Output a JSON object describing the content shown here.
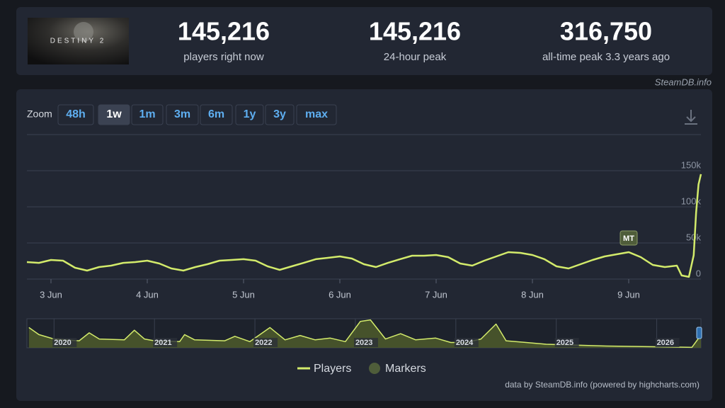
{
  "header": {
    "logo": "DESTINY 2",
    "stats": [
      {
        "value": "145,216",
        "label": "players right now"
      },
      {
        "value": "145,216",
        "label": "24-hour peak"
      },
      {
        "value": "316,750",
        "label": "all-time peak 3.3 years ago"
      }
    ],
    "source": "SteamDB.info"
  },
  "zoom": {
    "label": "Zoom",
    "buttons": [
      "48h",
      "1w",
      "1m",
      "3m",
      "6m",
      "1y",
      "3y",
      "max"
    ],
    "active": 1
  },
  "chart_data": {
    "type": "line",
    "x": [
      2.75,
      2.875,
      3.0,
      3.125,
      3.25,
      3.375,
      3.5,
      3.625,
      3.75,
      3.875,
      4.0,
      4.125,
      4.25,
      4.375,
      4.5,
      4.625,
      4.75,
      4.875,
      5.0,
      5.125,
      5.25,
      5.375,
      5.5,
      5.625,
      5.75,
      5.875,
      6.0,
      6.125,
      6.25,
      6.375,
      6.5,
      6.625,
      6.75,
      6.875,
      7.0,
      7.125,
      7.25,
      7.375,
      7.5,
      7.625,
      7.75,
      7.875,
      8.0,
      8.125,
      8.25,
      8.375,
      8.5,
      8.625,
      8.75,
      8.875,
      9.0,
      9.125,
      9.25,
      9.375,
      9.5,
      9.55,
      9.625,
      9.675,
      9.7,
      9.725,
      9.75
    ],
    "xlim": [
      2.75,
      9.75
    ],
    "xticks": [
      {
        "value": 3,
        "label": "3 Jun"
      },
      {
        "value": 4,
        "label": "4 Jun"
      },
      {
        "value": 5,
        "label": "5 Jun"
      },
      {
        "value": 6,
        "label": "6 Jun"
      },
      {
        "value": 7,
        "label": "7 Jun"
      },
      {
        "value": 8,
        "label": "8 Jun"
      },
      {
        "value": 9,
        "label": "9 Jun"
      }
    ],
    "ylim": [
      0,
      200000
    ],
    "yticks": [
      0,
      {
        "value": 50000,
        "label": "50k"
      },
      {
        "value": 100000,
        "label": "100k"
      },
      {
        "value": 150000,
        "label": "150k"
      }
    ],
    "grid": true,
    "series": [
      {
        "name": "Players",
        "color": "#d3eb6b",
        "values": [
          23500,
          22500,
          26500,
          25500,
          15700,
          11800,
          16700,
          18600,
          22500,
          23500,
          25500,
          21600,
          14700,
          11800,
          16700,
          20600,
          25500,
          26500,
          27500,
          25500,
          17600,
          12700,
          17600,
          22500,
          27500,
          29400,
          31400,
          28400,
          20600,
          16700,
          22500,
          27500,
          32400,
          32400,
          33300,
          30400,
          21600,
          18600,
          25500,
          31400,
          37300,
          36300,
          33300,
          27500,
          17600,
          14700,
          20600,
          26500,
          31400,
          34300,
          37300,
          30400,
          19600,
          16700,
          18600,
          5000,
          3000,
          33000,
          92000,
          131000,
          145216
        ]
      }
    ],
    "markers": {
      "name": "Markers",
      "color": "#4f5d3a",
      "items": [
        {
          "x": 9.0,
          "label": "MT"
        }
      ]
    },
    "navigator": {
      "x": [
        2019.75,
        2019.85,
        2020.0,
        2020.1,
        2020.25,
        2020.35,
        2020.45,
        2020.7,
        2020.8,
        2020.9,
        2021.0,
        2021.25,
        2021.3,
        2021.4,
        2021.7,
        2021.8,
        2021.95,
        2022.15,
        2022.3,
        2022.45,
        2022.6,
        2022.75,
        2022.9,
        2023.05,
        2023.15,
        2023.3,
        2023.45,
        2023.6,
        2023.8,
        2023.95,
        2024.1,
        2024.25,
        2024.4,
        2024.5,
        2024.7,
        2024.9,
        2025.2,
        2025.5,
        2025.8,
        2026.1,
        2026.35,
        2026.44
      ],
      "values": [
        230000,
        150000,
        100000,
        90000,
        80000,
        170000,
        100000,
        90000,
        200000,
        100000,
        80000,
        70000,
        150000,
        90000,
        80000,
        130000,
        70000,
        230000,
        90000,
        140000,
        90000,
        110000,
        70000,
        300000,
        316750,
        100000,
        160000,
        90000,
        110000,
        60000,
        60000,
        100000,
        270000,
        80000,
        60000,
        40000,
        30000,
        20000,
        15000,
        10000,
        5000,
        145216
      ],
      "xlim": [
        2019.73,
        2026.44
      ],
      "ylim": [
        0,
        330000
      ],
      "xticks": [
        2020,
        2021,
        2022,
        2023,
        2024,
        2025,
        2026
      ],
      "color": "#d3eb6b",
      "fill": "#4d5a2c"
    },
    "credits": "data by SteamDB.info (powered by highcharts.com)"
  }
}
